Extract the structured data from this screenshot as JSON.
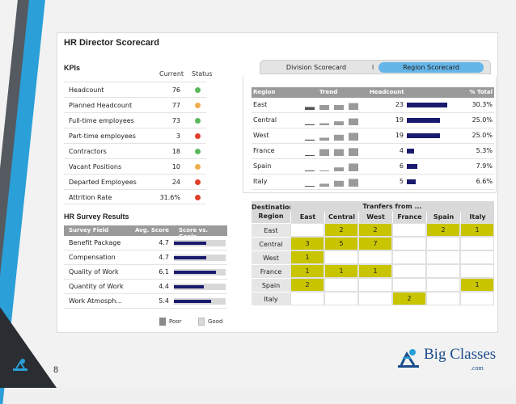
{
  "title": "HR Director Scorecard",
  "kpis": {
    "section_title": "KPIs",
    "col_current": "Current",
    "col_status": "Status",
    "rows": [
      {
        "label": "Headcount",
        "value": "76",
        "status": "#5cb85c"
      },
      {
        "label": "Planned Headcount",
        "value": "77",
        "status": "#f0ad4e"
      },
      {
        "label": "Full-time employees",
        "value": "73",
        "status": "#5cb85c"
      },
      {
        "label": "Part-time employees",
        "value": "3",
        "status": "#e0402a"
      },
      {
        "label": "Contractors",
        "value": "18",
        "status": "#5cb85c"
      },
      {
        "label": "Vacant Positions",
        "value": "10",
        "status": "#f0ad4e"
      },
      {
        "label": "Departed Employees",
        "value": "24",
        "status": "#e0402a"
      },
      {
        "label": "Attrition Rate",
        "value": "31.6%",
        "status": "#e0402a"
      }
    ]
  },
  "survey": {
    "section_title": "HR Survey Results",
    "col_field": "Survey Field",
    "col_avg": "Avg. Score",
    "col_goal": "Score vs. Goals",
    "rows": [
      {
        "label": "Benefit Package",
        "score": "4.7",
        "fill": 0.62
      },
      {
        "label": "Compensation",
        "score": "4.7",
        "fill": 0.62
      },
      {
        "label": "Quality of Work",
        "score": "6.1",
        "fill": 0.81
      },
      {
        "label": "Quantity of Work",
        "score": "4.4",
        "fill": 0.58
      },
      {
        "label": "Work Atmosph...",
        "score": "5.4",
        "fill": 0.72
      }
    ],
    "legend_poor": "Poor",
    "legend_good": "Good"
  },
  "tabs": [
    {
      "label": "Division Scorecard",
      "active": false
    },
    {
      "label": "Region Scorecard",
      "active": true
    }
  ],
  "tab_separator": "I",
  "region": {
    "col_region": "Region",
    "col_trend": "Trend",
    "col_headcount": "Headcount",
    "col_pct": "% Total",
    "max_headcount": 23,
    "rows": [
      {
        "label": "East",
        "headcount": "23",
        "hc": 23,
        "pct": "30.3%",
        "trend": [
          0.3,
          0.5,
          0.5,
          0.7
        ]
      },
      {
        "label": "Central",
        "headcount": "19",
        "hc": 19,
        "pct": "25.0%",
        "trend": [
          0.1,
          0.2,
          0.4,
          0.7
        ]
      },
      {
        "label": "West",
        "headcount": "19",
        "hc": 19,
        "pct": "25.0%",
        "trend": [
          0.1,
          0.3,
          0.6,
          0.8
        ]
      },
      {
        "label": "France",
        "headcount": "4",
        "hc": 4,
        "pct": "5.3%",
        "trend": [
          0.05,
          0.7,
          0.7,
          0.8
        ]
      },
      {
        "label": "Spain",
        "headcount": "6",
        "hc": 6,
        "pct": "7.9%",
        "trend": [
          0.05,
          0.05,
          0.4,
          0.8
        ]
      },
      {
        "label": "Italy",
        "headcount": "5",
        "hc": 5,
        "pct": "6.6%",
        "trend": [
          0.05,
          0.3,
          0.6,
          0.8
        ]
      }
    ]
  },
  "transfers": {
    "corner_line1": "Destination",
    "corner_line2": "Region",
    "header": "Tranfers from ...",
    "columns": [
      "East",
      "Central",
      "West",
      "France",
      "Spain",
      "Italy"
    ],
    "rows": [
      {
        "label": "East",
        "cells": [
          "",
          "2",
          "2",
          "",
          "2",
          "1"
        ],
        "on": [
          false,
          true,
          true,
          false,
          true,
          true
        ]
      },
      {
        "label": "Central",
        "cells": [
          "3",
          "5",
          "7",
          "",
          "",
          ""
        ],
        "on": [
          true,
          true,
          true,
          false,
          false,
          false
        ]
      },
      {
        "label": "West",
        "cells": [
          "1",
          "",
          "",
          "",
          "",
          ""
        ],
        "on": [
          true,
          false,
          false,
          false,
          false,
          false
        ]
      },
      {
        "label": "France",
        "cells": [
          "1",
          "1",
          "1",
          "",
          "",
          ""
        ],
        "on": [
          true,
          true,
          true,
          false,
          false,
          false
        ]
      },
      {
        "label": "Spain",
        "cells": [
          "2",
          "",
          "",
          "",
          "",
          "1"
        ],
        "on": [
          true,
          false,
          false,
          false,
          false,
          true
        ]
      },
      {
        "label": "Italy",
        "cells": [
          "",
          "",
          "",
          "2",
          "",
          ""
        ],
        "on": [
          false,
          false,
          false,
          true,
          false,
          false
        ]
      }
    ]
  },
  "brand": {
    "name": "Big Classes",
    "suffix": ".com"
  },
  "page_number": "8"
}
